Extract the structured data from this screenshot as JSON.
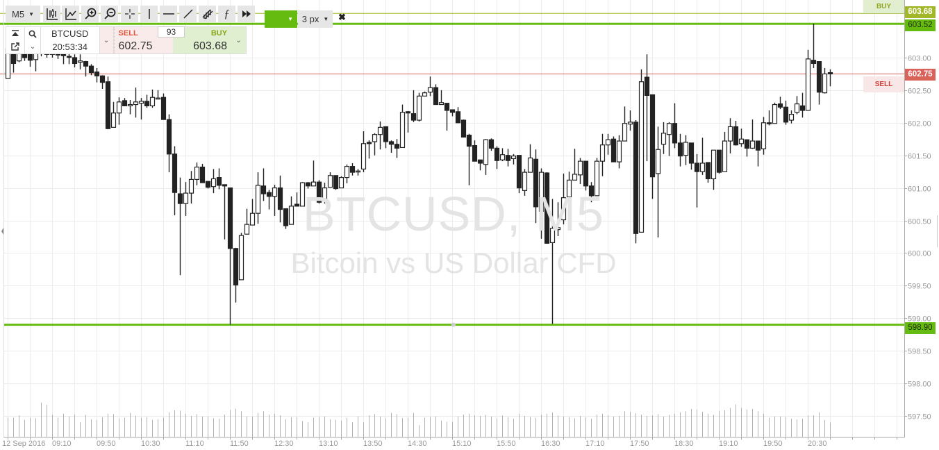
{
  "toolbar": {
    "timeframe": "M5",
    "tools": [
      "bar-style-icon",
      "indicator-icon",
      "zoom-in-icon",
      "zoom-out-icon",
      "crosshair-icon",
      "vertical-line-icon",
      "horizontal-line-icon",
      "trend-line-icon",
      "channel-icon",
      "function-icon",
      "fast-forward-icon"
    ],
    "line_color": "#66bb11",
    "line_width": "3 px",
    "close_symbol": "✖"
  },
  "panel": {
    "symbol": "BTCUSD",
    "time": "20:53:34",
    "sell_label": "SELL",
    "sell_price": "602.75",
    "buy_label": "BUY",
    "buy_price": "603.68",
    "quantity": "93"
  },
  "watermark": {
    "line1": "BTCUSD, M5",
    "line2": "Bitcoin vs US Dollar CFD"
  },
  "price_tags": {
    "buy_tag": "BUY",
    "buy_price": "603.68",
    "level_upper": "603.52",
    "sell_tag": "SELL",
    "sell_price": "602.75",
    "level_lower": "598.90"
  },
  "colors": {
    "buy": "#a2b828",
    "sell": "#d9625a",
    "level": "#66bb11",
    "candle": "#222222",
    "volume": "#b0b0b0"
  },
  "chart_data": {
    "type": "candlestick",
    "title": "",
    "date_label": "12 Sep 2016",
    "interval": "M5",
    "ylim": [
      597.2,
      603.75
    ],
    "y_ticks": [
      "603.00",
      "602.50",
      "602.00",
      "601.50",
      "601.00",
      "600.50",
      "600.00",
      "599.50",
      "599.00",
      "598.50",
      "598.00",
      "597.50"
    ],
    "x_ticks": [
      "09:10",
      "09:50",
      "10:30",
      "11:10",
      "11:50",
      "12:30",
      "13:10",
      "13:50",
      "14:30",
      "15:10",
      "15:50",
      "16:30",
      "17:10",
      "17:50",
      "18:30",
      "19:10",
      "19:50",
      "20:30"
    ],
    "grid": true,
    "horizontal_lines": [
      {
        "label": "BUY",
        "value": 603.68
      },
      {
        "value": 603.52
      },
      {
        "label": "SELL",
        "value": 602.75
      },
      {
        "value": 598.9
      }
    ],
    "candle_fields": [
      "time",
      "open",
      "high",
      "low",
      "close"
    ],
    "candles": [
      [
        "08:30",
        602.68,
        603.2,
        602.68,
        603.14
      ],
      [
        "08:35",
        603.08,
        603.2,
        602.77,
        602.91
      ],
      [
        "08:40",
        602.95,
        603.15,
        602.93,
        603.08
      ],
      [
        "08:45",
        603.1,
        603.18,
        602.95,
        603.0
      ],
      [
        "08:50",
        603.06,
        603.15,
        602.86,
        602.96
      ],
      [
        "08:55",
        602.97,
        603.16,
        602.79,
        603.1
      ],
      [
        "09:00",
        603.08,
        603.2,
        603.02,
        603.12
      ],
      [
        "09:05",
        603.12,
        603.22,
        603.0,
        603.05
      ],
      [
        "09:10",
        603.05,
        603.18,
        603.0,
        603.1
      ],
      [
        "09:15",
        603.1,
        603.16,
        602.98,
        603.04
      ],
      [
        "09:20",
        603.05,
        603.08,
        602.9,
        603.03
      ],
      [
        "09:25",
        603.02,
        603.06,
        602.9,
        603.01
      ],
      [
        "09:30",
        603.0,
        603.05,
        602.85,
        602.91
      ],
      [
        "09:35",
        602.93,
        603.05,
        602.82,
        602.95
      ],
      [
        "09:40",
        602.94,
        602.95,
        602.71,
        602.87
      ],
      [
        "09:45",
        602.87,
        602.9,
        602.73,
        602.77
      ],
      [
        "09:50",
        602.78,
        602.84,
        602.62,
        602.72
      ],
      [
        "09:55",
        602.72,
        602.73,
        602.52,
        602.62
      ],
      [
        "10:00",
        602.63,
        602.71,
        601.9,
        601.91
      ],
      [
        "10:05",
        601.93,
        602.32,
        601.93,
        602.15
      ],
      [
        "10:10",
        602.15,
        602.39,
        601.97,
        602.32
      ],
      [
        "10:15",
        602.34,
        602.38,
        602.26,
        602.26
      ],
      [
        "10:20",
        602.26,
        602.35,
        602.13,
        602.28
      ],
      [
        "10:25",
        602.28,
        602.54,
        602.08,
        602.32
      ],
      [
        "10:30",
        602.3,
        602.38,
        602.05,
        602.33
      ],
      [
        "10:35",
        602.33,
        602.43,
        602.23,
        602.26
      ],
      [
        "10:40",
        602.26,
        602.51,
        602.23,
        602.39
      ],
      [
        "10:45",
        602.37,
        602.5,
        602.37,
        602.38
      ],
      [
        "10:50",
        602.39,
        602.45,
        602.05,
        602.05
      ],
      [
        "10:55",
        602.05,
        602.13,
        601.24,
        601.52
      ],
      [
        "11:00",
        601.52,
        601.64,
        600.58,
        600.93
      ],
      [
        "11:05",
        600.91,
        601.16,
        599.66,
        600.76
      ],
      [
        "11:10",
        600.76,
        601.09,
        600.57,
        600.92
      ],
      [
        "11:15",
        600.92,
        601.26,
        600.76,
        601.13
      ],
      [
        "11:20",
        601.13,
        601.39,
        601.04,
        601.32
      ],
      [
        "11:25",
        601.32,
        601.37,
        601.08,
        601.08
      ],
      [
        "11:30",
        601.1,
        601.1,
        600.99,
        601.01
      ],
      [
        "11:35",
        601.02,
        601.29,
        600.92,
        601.14
      ],
      [
        "11:40",
        601.16,
        601.3,
        600.98,
        601.04
      ],
      [
        "11:45",
        601.05,
        601.05,
        600.21,
        601.03
      ],
      [
        "11:50",
        601.0,
        601.0,
        598.9,
        600.07
      ],
      [
        "11:55",
        600.07,
        600.08,
        599.24,
        599.51
      ],
      [
        "12:00",
        599.59,
        600.31,
        599.59,
        600.27
      ],
      [
        "12:05",
        600.29,
        600.68,
        600.29,
        600.44
      ],
      [
        "12:10",
        600.43,
        600.83,
        600.43,
        600.61
      ],
      [
        "12:15",
        600.61,
        601.24,
        600.45,
        601.04
      ],
      [
        "12:20",
        601.03,
        601.3,
        600.8,
        600.91
      ],
      [
        "12:25",
        600.93,
        600.97,
        600.67,
        600.87
      ],
      [
        "12:30",
        600.87,
        601.05,
        600.57,
        601.0
      ],
      [
        "12:35",
        601.0,
        601.19,
        600.47,
        600.67
      ],
      [
        "12:40",
        600.68,
        600.68,
        600.37,
        600.42
      ],
      [
        "12:45",
        600.44,
        600.87,
        600.44,
        600.72
      ],
      [
        "12:50",
        600.75,
        600.93,
        600.72,
        600.72
      ],
      [
        "12:55",
        600.72,
        601.09,
        600.72,
        601.08
      ],
      [
        "13:00",
        601.08,
        601.09,
        600.99,
        601.03
      ],
      [
        "13:05",
        601.03,
        601.42,
        601.03,
        601.09
      ],
      [
        "13:10",
        601.09,
        601.12,
        600.76,
        600.78
      ],
      [
        "13:15",
        600.8,
        601.08,
        600.76,
        601.0
      ],
      [
        "13:20",
        601.01,
        601.24,
        601.01,
        601.19
      ],
      [
        "13:25",
        601.19,
        601.19,
        600.97,
        600.99
      ],
      [
        "13:30",
        601.0,
        601.18,
        601.0,
        601.16
      ],
      [
        "13:35",
        601.16,
        601.36,
        601.07,
        601.33
      ],
      [
        "13:40",
        601.33,
        601.38,
        601.19,
        601.24
      ],
      [
        "13:45",
        601.25,
        601.29,
        601.19,
        601.26
      ],
      [
        "13:50",
        601.29,
        601.87,
        601.24,
        601.68
      ],
      [
        "13:55",
        601.7,
        601.73,
        601.45,
        601.68
      ],
      [
        "14:00",
        601.71,
        601.84,
        601.5,
        601.82
      ],
      [
        "14:05",
        601.82,
        602.02,
        601.59,
        601.93
      ],
      [
        "14:10",
        601.94,
        601.94,
        601.61,
        601.71
      ],
      [
        "14:15",
        601.71,
        601.73,
        601.54,
        601.67
      ],
      [
        "14:20",
        601.67,
        601.75,
        601.46,
        601.61
      ],
      [
        "14:25",
        601.62,
        602.28,
        601.62,
        602.16
      ],
      [
        "14:30",
        602.17,
        602.18,
        601.85,
        602.15
      ],
      [
        "14:35",
        602.14,
        602.5,
        602.01,
        602.04
      ],
      [
        "14:40",
        602.04,
        602.46,
        602.02,
        602.41
      ],
      [
        "14:45",
        602.41,
        602.48,
        602.41,
        602.46
      ],
      [
        "14:50",
        602.47,
        602.71,
        602.41,
        602.54
      ],
      [
        "14:55",
        602.54,
        602.59,
        602.28,
        602.28
      ],
      [
        "15:00",
        602.28,
        602.5,
        602.28,
        602.31
      ],
      [
        "15:05",
        602.3,
        602.3,
        601.88,
        602.19
      ],
      [
        "15:10",
        602.2,
        602.2,
        602.1,
        602.16
      ],
      [
        "15:15",
        602.17,
        602.24,
        602.0,
        602.0
      ],
      [
        "15:20",
        602.04,
        602.05,
        601.78,
        601.78
      ],
      [
        "15:25",
        601.81,
        601.83,
        601.04,
        601.64
      ],
      [
        "15:30",
        601.65,
        601.73,
        601.41,
        601.41
      ],
      [
        "15:35",
        601.43,
        601.43,
        601.27,
        601.38
      ],
      [
        "15:40",
        601.36,
        601.75,
        601.2,
        601.74
      ],
      [
        "15:45",
        601.74,
        601.76,
        601.57,
        601.61
      ],
      [
        "15:50",
        601.61,
        601.64,
        601.29,
        601.42
      ],
      [
        "15:55",
        601.43,
        601.61,
        601.41,
        601.51
      ],
      [
        "16:00",
        601.5,
        601.6,
        601.33,
        601.42
      ],
      [
        "16:05",
        601.45,
        601.52,
        601.36,
        601.49
      ],
      [
        "16:10",
        601.5,
        601.5,
        600.92,
        601.0
      ],
      [
        "16:15",
        600.96,
        601.29,
        600.88,
        601.24
      ],
      [
        "16:20",
        601.24,
        601.67,
        601.24,
        601.46
      ],
      [
        "16:25",
        601.44,
        601.59,
        600.46,
        600.71
      ],
      [
        "16:30",
        600.64,
        601.3,
        600.22,
        601.24
      ],
      [
        "16:35",
        601.23,
        601.24,
        600.15,
        600.15
      ],
      [
        "16:40",
        600.16,
        600.83,
        598.91,
        600.38
      ],
      [
        "16:45",
        600.36,
        600.78,
        600.26,
        600.39
      ],
      [
        "16:50",
        600.51,
        601.22,
        600.44,
        600.85
      ],
      [
        "16:55",
        600.86,
        601.25,
        600.78,
        601.12
      ],
      [
        "17:00",
        601.12,
        601.6,
        601.12,
        601.21
      ],
      [
        "17:05",
        601.2,
        601.46,
        601.06,
        601.41
      ],
      [
        "17:10",
        601.41,
        601.41,
        600.96,
        601.03
      ],
      [
        "17:15",
        601.03,
        601.09,
        600.78,
        600.88
      ],
      [
        "17:20",
        600.88,
        601.46,
        600.88,
        601.41
      ],
      [
        "17:25",
        601.41,
        601.83,
        601.18,
        601.66
      ],
      [
        "17:30",
        601.66,
        601.83,
        601.51,
        601.74
      ],
      [
        "17:35",
        601.75,
        601.79,
        601.4,
        601.4
      ],
      [
        "17:40",
        601.4,
        601.81,
        601.3,
        601.72
      ],
      [
        "17:45",
        601.72,
        602.25,
        601.72,
        601.99
      ],
      [
        "17:50",
        601.98,
        602.19,
        601.88,
        602.01
      ],
      [
        "17:55",
        602.01,
        602.04,
        600.15,
        600.3
      ],
      [
        "18:00",
        600.32,
        602.82,
        600.32,
        602.63
      ],
      [
        "18:05",
        602.7,
        603.05,
        601.41,
        602.42
      ],
      [
        "18:10",
        602.43,
        602.43,
        600.83,
        601.17
      ],
      [
        "18:15",
        601.22,
        601.94,
        600.24,
        601.59
      ],
      [
        "18:20",
        601.67,
        602.01,
        601.52,
        601.84
      ],
      [
        "18:25",
        601.82,
        602.01,
        601.49,
        601.99
      ],
      [
        "18:30",
        601.99,
        602.3,
        601.61,
        601.69
      ],
      [
        "18:35",
        601.69,
        601.83,
        601.33,
        601.49
      ],
      [
        "18:40",
        601.5,
        601.81,
        601.35,
        601.7
      ],
      [
        "18:45",
        601.69,
        601.69,
        601.28,
        601.38
      ],
      [
        "18:50",
        601.38,
        601.52,
        600.7,
        601.25
      ],
      [
        "18:55",
        601.25,
        601.77,
        601.2,
        601.38
      ],
      [
        "19:00",
        601.39,
        601.39,
        601.08,
        601.14
      ],
      [
        "19:05",
        601.14,
        601.58,
        600.97,
        601.58
      ],
      [
        "19:10",
        601.58,
        601.58,
        601.22,
        601.24
      ],
      [
        "19:15",
        601.25,
        601.86,
        601.25,
        601.72
      ],
      [
        "19:20",
        601.72,
        602.07,
        601.53,
        601.94
      ],
      [
        "19:25",
        601.94,
        602.03,
        601.65,
        601.66
      ],
      [
        "19:30",
        601.68,
        601.91,
        601.63,
        601.75
      ],
      [
        "19:35",
        601.74,
        601.74,
        601.48,
        601.61
      ],
      [
        "19:40",
        601.61,
        602.05,
        601.6,
        601.72
      ],
      [
        "19:45",
        601.72,
        601.72,
        601.33,
        601.58
      ],
      [
        "19:50",
        601.6,
        602.09,
        601.51,
        602.0
      ],
      [
        "19:55",
        602.0,
        602.19,
        601.96,
        601.99
      ],
      [
        "20:00",
        601.99,
        602.31,
        601.99,
        602.28
      ],
      [
        "20:05",
        602.29,
        602.4,
        602.21,
        602.24
      ],
      [
        "20:10",
        602.24,
        602.34,
        601.97,
        602.01
      ],
      [
        "20:15",
        602.04,
        602.19,
        601.99,
        602.13
      ],
      [
        "20:20",
        602.16,
        602.41,
        602.13,
        602.29
      ],
      [
        "20:25",
        602.26,
        602.46,
        602.08,
        602.19
      ],
      [
        "20:30",
        602.19,
        603.12,
        602.19,
        602.98
      ],
      [
        "20:35",
        602.96,
        603.52,
        602.84,
        602.91
      ],
      [
        "20:40",
        602.94,
        602.94,
        602.28,
        602.47
      ],
      [
        "20:45",
        602.46,
        602.84,
        602.45,
        602.75
      ],
      [
        "20:50",
        602.77,
        602.82,
        602.56,
        602.75
      ]
    ],
    "volume_relative": [
      83,
      83,
      93,
      73,
      83,
      80,
      148,
      138,
      95,
      83,
      100,
      88,
      96,
      63,
      95,
      76,
      73,
      85,
      100,
      98,
      80,
      83,
      103,
      91,
      83,
      85,
      73,
      76,
      83,
      106,
      115,
      113,
      100,
      90,
      98,
      88,
      88,
      80,
      78,
      96,
      116,
      121,
      110,
      88,
      88,
      103,
      110,
      96,
      100,
      93,
      76,
      85,
      85,
      68,
      63,
      83,
      86,
      88,
      76,
      73,
      70,
      82,
      63,
      88,
      63,
      93,
      98,
      88,
      80,
      103,
      98,
      81,
      83,
      103,
      50,
      83,
      86,
      88,
      70,
      65,
      65,
      88,
      96,
      100,
      93,
      90,
      95,
      88,
      80,
      92,
      85,
      78,
      100,
      90,
      86,
      82,
      95,
      100,
      105,
      92,
      88,
      85,
      80,
      90,
      84,
      78,
      96,
      100,
      94,
      88,
      90,
      110,
      108,
      102,
      96,
      90,
      92,
      98,
      88,
      95,
      100,
      106,
      110,
      120,
      118,
      108,
      100,
      95,
      112,
      115,
      125,
      140,
      125,
      118,
      120,
      110,
      100,
      83,
      88,
      88,
      85,
      78,
      75,
      78,
      93,
      93,
      106,
      72,
      62
    ]
  }
}
